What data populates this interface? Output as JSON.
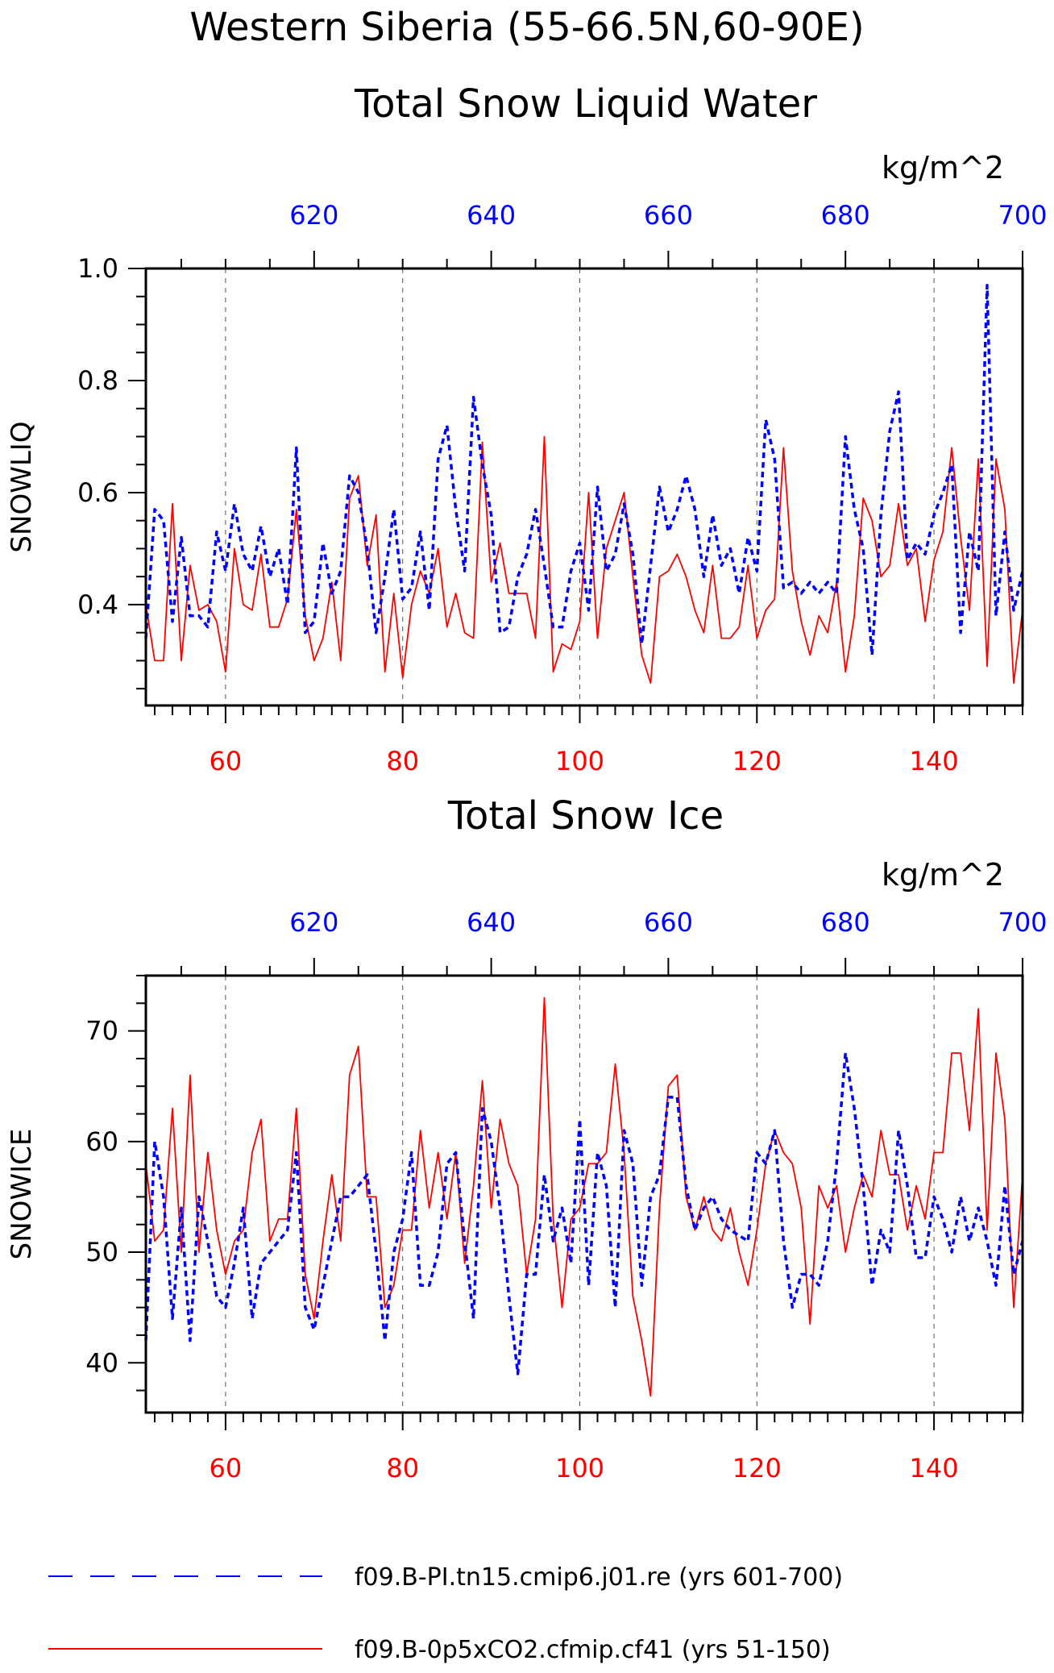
{
  "title_lines": [
    "Western Siberia (55-66.5N,60-90E)",
    "Total Snow Liquid Water"
  ],
  "colors": {
    "red_series": "#ff0000",
    "blue_series": "#0000ff",
    "axis": "#000000",
    "grid": "#555555"
  },
  "legend": {
    "entries": [
      {
        "label": "f09.B-PI.tn15.cmip6.j01.re (yrs 601-700)",
        "color": "#0000ff",
        "style": "dashed"
      },
      {
        "label": "f09.B-0p5xCO2.cfmip.cf41 (yrs 51-150)",
        "color": "#ff0000",
        "style": "solid"
      }
    ]
  },
  "chart_data": [
    {
      "type": "line",
      "title": "Total Snow Liquid Water",
      "units": "kg/m^2",
      "ylabel": "SNOWLIQ",
      "ylim": [
        0.22,
        1.0
      ],
      "yticks": [
        0.4,
        0.6,
        0.8,
        1.0
      ],
      "ytick_labels": [
        "0.4",
        "0.6",
        "0.8",
        "1.0"
      ],
      "bottom_xlim": [
        51,
        150
      ],
      "bottom_xticks": [
        60,
        80,
        100,
        120,
        140
      ],
      "top_xlim": [
        601,
        700
      ],
      "top_xticks": [
        620,
        640,
        660,
        680,
        700
      ],
      "grid": "vertical dashed",
      "series": [
        {
          "name": "f09.B-0p5xCO2.cfmip.cf41 (yrs 51-150)",
          "axis": "bottom",
          "color": "#ff0000",
          "style": "solid",
          "x_start": 51,
          "values": [
            0.4,
            0.3,
            0.3,
            0.58,
            0.3,
            0.47,
            0.39,
            0.4,
            0.37,
            0.28,
            0.5,
            0.4,
            0.39,
            0.49,
            0.36,
            0.36,
            0.41,
            0.57,
            0.38,
            0.3,
            0.34,
            0.44,
            0.3,
            0.59,
            0.63,
            0.47,
            0.56,
            0.28,
            0.42,
            0.27,
            0.4,
            0.46,
            0.42,
            0.5,
            0.36,
            0.42,
            0.35,
            0.34,
            0.69,
            0.44,
            0.51,
            0.42,
            0.42,
            0.42,
            0.34,
            0.7,
            0.28,
            0.33,
            0.32,
            0.37,
            0.6,
            0.34,
            0.5,
            0.55,
            0.6,
            0.45,
            0.31,
            0.26,
            0.45,
            0.46,
            0.49,
            0.45,
            0.39,
            0.35,
            0.47,
            0.34,
            0.34,
            0.36,
            0.47,
            0.34,
            0.39,
            0.41,
            0.68,
            0.46,
            0.37,
            0.31,
            0.38,
            0.35,
            0.44,
            0.28,
            0.38,
            0.59,
            0.55,
            0.45,
            0.47,
            0.58,
            0.47,
            0.5,
            0.37,
            0.48,
            0.53,
            0.68,
            0.52,
            0.39,
            0.66,
            0.29,
            0.66,
            0.57,
            0.26,
            0.39
          ]
        },
        {
          "name": "f09.B-PI.tn15.cmip6.j01.re (yrs 601-700)",
          "axis": "top",
          "color": "#0000ff",
          "style": "dashed",
          "x_start": 601,
          "values": [
            0.34,
            0.57,
            0.55,
            0.37,
            0.52,
            0.38,
            0.38,
            0.36,
            0.53,
            0.46,
            0.58,
            0.49,
            0.46,
            0.54,
            0.45,
            0.5,
            0.4,
            0.68,
            0.35,
            0.37,
            0.51,
            0.42,
            0.46,
            0.63,
            0.6,
            0.5,
            0.35,
            0.45,
            0.57,
            0.41,
            0.43,
            0.53,
            0.39,
            0.66,
            0.72,
            0.57,
            0.46,
            0.77,
            0.65,
            0.56,
            0.35,
            0.36,
            0.45,
            0.49,
            0.57,
            0.47,
            0.36,
            0.36,
            0.46,
            0.51,
            0.39,
            0.61,
            0.46,
            0.49,
            0.58,
            0.49,
            0.33,
            0.47,
            0.61,
            0.53,
            0.57,
            0.63,
            0.57,
            0.45,
            0.56,
            0.47,
            0.5,
            0.42,
            0.52,
            0.46,
            0.73,
            0.66,
            0.43,
            0.44,
            0.42,
            0.44,
            0.42,
            0.44,
            0.42,
            0.7,
            0.57,
            0.5,
            0.31,
            0.56,
            0.71,
            0.78,
            0.48,
            0.51,
            0.49,
            0.56,
            0.6,
            0.65,
            0.35,
            0.53,
            0.46,
            0.97,
            0.38,
            0.53,
            0.39,
            0.46
          ]
        }
      ]
    },
    {
      "type": "line",
      "title": "Total Snow Ice",
      "units": "kg/m^2",
      "ylabel": "SNOWICE",
      "ylim": [
        35.5,
        75
      ],
      "yticks": [
        40,
        50,
        60,
        70
      ],
      "ytick_labels": [
        "40",
        "50",
        "60",
        "70"
      ],
      "bottom_xlim": [
        51,
        150
      ],
      "bottom_xticks": [
        60,
        80,
        100,
        120,
        140
      ],
      "top_xlim": [
        601,
        700
      ],
      "top_xticks": [
        620,
        640,
        660,
        680,
        700
      ],
      "grid": "vertical dashed",
      "series": [
        {
          "name": "f09.B-0p5xCO2.cfmip.cf41 (yrs 51-150)",
          "axis": "bottom",
          "color": "#ff0000",
          "style": "solid",
          "x_start": 51,
          "values": [
            58,
            51,
            52,
            63,
            50,
            66,
            50,
            59,
            52,
            48,
            51,
            52,
            59,
            62,
            51,
            53,
            53,
            63,
            48,
            44,
            51,
            57,
            51,
            66,
            68.6,
            55,
            55,
            45,
            47,
            52,
            52,
            61,
            54,
            59,
            53,
            59,
            49,
            56,
            65.5,
            54,
            62,
            58,
            56,
            48,
            53,
            73,
            53,
            45,
            53,
            54,
            58,
            58,
            59,
            67,
            59,
            46,
            42,
            37,
            54,
            65,
            66,
            55,
            52,
            55,
            52,
            51,
            54,
            50,
            47,
            52,
            58,
            61,
            59,
            58,
            54,
            43.5,
            56,
            54,
            56,
            50,
            54,
            57,
            55,
            61,
            57,
            57,
            52,
            56,
            53,
            59,
            59,
            68,
            68,
            61,
            72,
            52,
            68,
            62,
            45,
            57
          ]
        },
        {
          "name": "f09.B-PI.tn15.cmip6.j01.re (yrs 601-700)",
          "axis": "top",
          "color": "#0000ff",
          "style": "dashed",
          "x_start": 601,
          "values": [
            42,
            60,
            55,
            44,
            54,
            42,
            55,
            51,
            46,
            45,
            49,
            54,
            44,
            49,
            50,
            51,
            52,
            59,
            45,
            43,
            47,
            51,
            55,
            55,
            56,
            57,
            50,
            42,
            50,
            53,
            59,
            47,
            47,
            50,
            58,
            59,
            51,
            44,
            63,
            60,
            54,
            46,
            39,
            48,
            48,
            57,
            51,
            54,
            49,
            62,
            47,
            59,
            56,
            45,
            61,
            58,
            47,
            55,
            57,
            64,
            64,
            56,
            52,
            54,
            55,
            53,
            52,
            51.5,
            51,
            59,
            58,
            61,
            51,
            45,
            48,
            48,
            47,
            51,
            58,
            68,
            63,
            56,
            47,
            52,
            50,
            61,
            56,
            49.5,
            49.5,
            55,
            53,
            50,
            55,
            51,
            54,
            51,
            47,
            56,
            48,
            51
          ]
        }
      ]
    }
  ]
}
